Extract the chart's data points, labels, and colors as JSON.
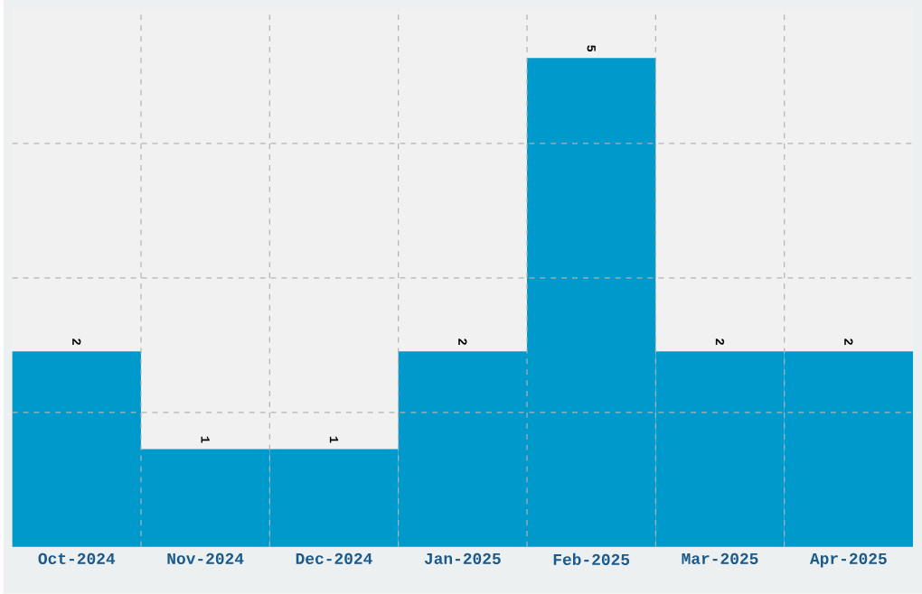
{
  "chart_data": {
    "type": "bar",
    "categories": [
      "Oct-2024",
      "Nov-2024",
      "Dec-2024",
      "Jan-2025",
      "Feb-2025",
      "Mar-2025",
      "Apr-2025"
    ],
    "values": [
      2,
      1,
      1,
      2,
      5,
      2,
      2
    ],
    "color": "#0099cc",
    "ylim": [
      0,
      5.5
    ],
    "yticks": [
      {
        "value": 1.375,
        "label": null
      },
      {
        "value": 2.75,
        "label": null
      },
      {
        "value": 4.125,
        "label": null
      }
    ],
    "grid": true,
    "data_labels": true,
    "tick_labels": "x"
  }
}
